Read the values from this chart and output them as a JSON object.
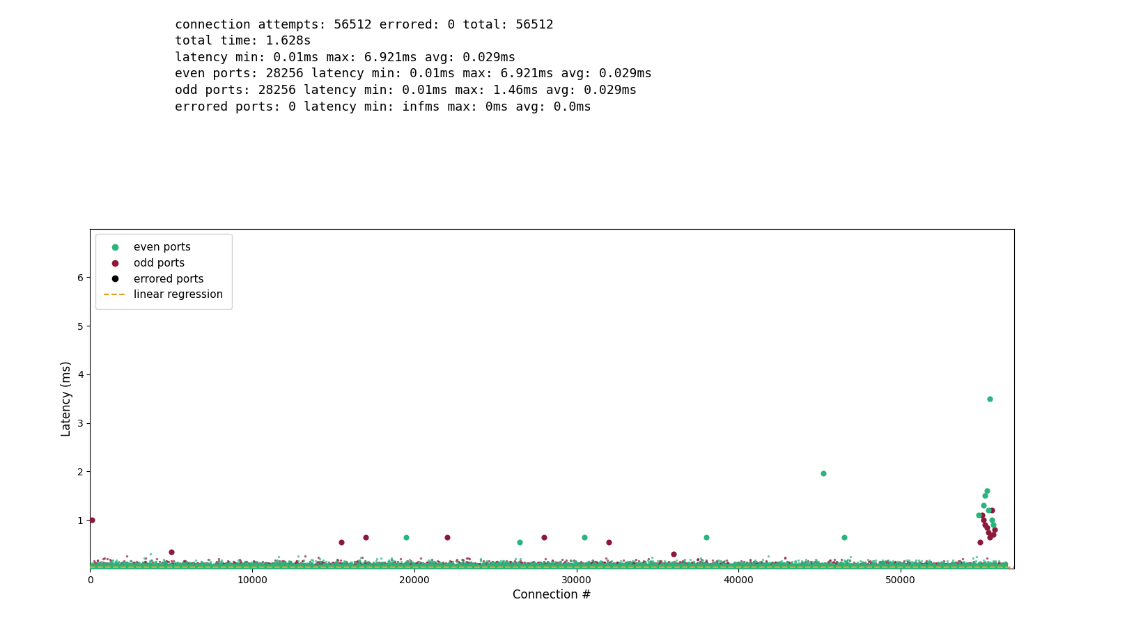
{
  "title_lines": [
    "connection attempts: 56512 errored: 0 total: 56512",
    "total time: 1.628s",
    "latency min: 0.01ms max: 6.921ms avg: 0.029ms",
    "even ports: 28256 latency min: 0.01ms max: 6.921ms avg: 0.029ms",
    "odd ports: 28256 latency min: 0.01ms max: 1.46ms avg: 0.029ms",
    "errored ports: 0 latency min: infms max: 0ms avg: 0.0ms"
  ],
  "total_connections": 56512,
  "even_count": 28256,
  "odd_count": 28256,
  "avg_latency": 0.029,
  "even_color": "#2ab57d",
  "odd_color": "#8b1a3a",
  "errored_color": "#000000",
  "regression_color": "#e8a020",
  "xlabel": "Connection #",
  "ylabel": "Latency (ms)",
  "xlim": [
    0,
    57000
  ],
  "ylim": [
    0,
    7.0
  ],
  "yticks": [
    1,
    2,
    3,
    4,
    5,
    6
  ],
  "xticks": [
    0,
    10000,
    20000,
    30000,
    40000,
    50000
  ],
  "seed": 42,
  "title_fontsize": 13,
  "axis_fontsize": 12,
  "legend_fontsize": 11,
  "background_color": "#ffffff",
  "figure_bg": "#ffffff",
  "scatter_s": 6,
  "scatter_alpha": 0.7
}
